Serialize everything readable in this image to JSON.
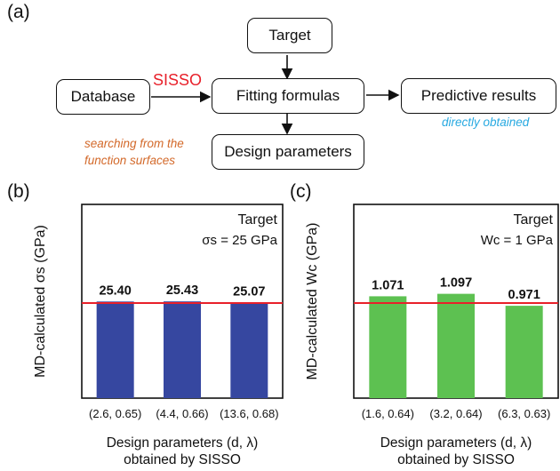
{
  "flowchart": {
    "panel_label": "(a)",
    "boxes": {
      "target": "Target",
      "database": "Database",
      "fitting": "Fitting formulas",
      "predictive": "Predictive results",
      "design": "Design parameters"
    },
    "sisso_label": "SISSO",
    "directly_obtained": "directly obtained",
    "searching_note": [
      "searching from the",
      "function surfaces"
    ]
  },
  "colors": {
    "bar_blue": "#3647a0",
    "bar_green": "#5dc151",
    "target_line": "#e8202a",
    "sisso_red": "#e8202a",
    "note_orange": "#d3692a",
    "note_cyan": "#27a9e1"
  },
  "chart_data": [
    {
      "panel_label": "(b)",
      "type": "bar",
      "categories": [
        "(2.6, 0.65)",
        "(4.4, 0.66)",
        "(13.6, 0.68)"
      ],
      "values": [
        25.4,
        25.43,
        25.07
      ],
      "value_labels": [
        "25.40",
        "25.43",
        "25.07"
      ],
      "target_value": 25,
      "target_text": "Target",
      "target_formula": "σs = 25 GPa",
      "ylabel": "MD-calculated σs (GPa)",
      "xlabel": [
        "Design parameters (d, λ)",
        "obtained by SISSO"
      ],
      "grid": false
    },
    {
      "panel_label": "(c)",
      "type": "bar",
      "categories": [
        "(1.6, 0.64)",
        "(3.2, 0.64)",
        "(6.3, 0.63)"
      ],
      "values": [
        1.071,
        1.097,
        0.971
      ],
      "value_labels": [
        "1.071",
        "1.097",
        "0.971"
      ],
      "target_value": 1,
      "target_text": "Target",
      "target_formula": "Wc = 1 GPa",
      "ylabel": "MD-calculated Wc (GPa)",
      "xlabel": [
        "Design parameters (d, λ)",
        "obtained by SISSO"
      ],
      "grid": false
    }
  ]
}
